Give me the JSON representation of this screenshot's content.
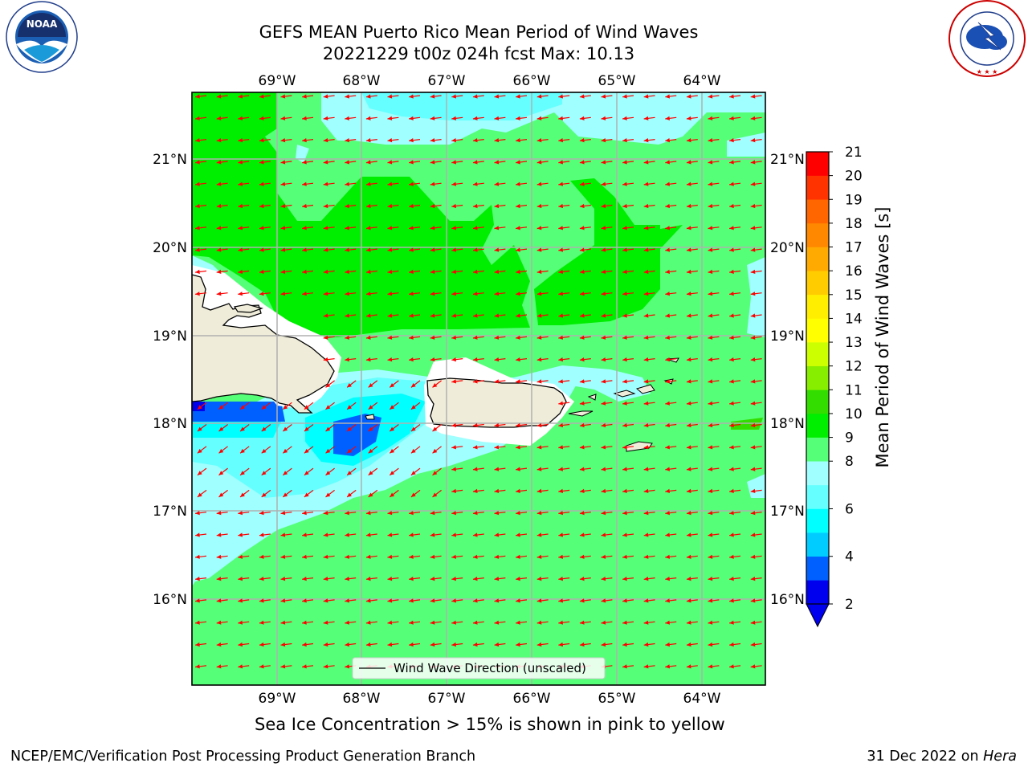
{
  "title": {
    "line1": "GEFS MEAN Puerto Rico Mean Period of Wind Waves",
    "line2": "20221229 t00z 024h fcst   Max: 10.13"
  },
  "axes": {
    "lon_ticks": [
      "69°W",
      "68°W",
      "67°W",
      "66°W",
      "65°W",
      "64°W"
    ],
    "lat_ticks": [
      "21°N",
      "20°N",
      "19°N",
      "18°N",
      "17°N",
      "16°N"
    ]
  },
  "legend": {
    "label": "Wind Wave Direction (unscaled)"
  },
  "colorbar": {
    "label": "Mean Period of Wind Waves [s]",
    "ticks": [
      "21",
      "20",
      "19",
      "18",
      "17",
      "16",
      "15",
      "14",
      "13",
      "12",
      "11",
      "10",
      "9",
      "8",
      "6",
      "4",
      "2"
    ],
    "colors": [
      "#0000ee",
      "#0060ff",
      "#00ccff",
      "#00ffff",
      "#66ffff",
      "#a0ffff",
      "#55ff77",
      "#00ee00",
      "#33dd00",
      "#88ee00",
      "#ccff00",
      "#ffff00",
      "#ffee00",
      "#ffcc00",
      "#ffaa00",
      "#ff8800",
      "#ff6600",
      "#ff3300",
      "#ff0000"
    ]
  },
  "caption": "Sea Ice Concentration > 15% is shown in pink to yellow",
  "footer": {
    "left": "NCEP/EMC/Verification Post Processing Product Generation Branch",
    "date": "31 Dec 2022 on",
    "machine": "Hera"
  },
  "logos": {
    "noaa": "NOAA",
    "noaa_ring": "NATIONAL OCEANIC AND ATMOSPHERIC ADMINISTRATION · U.S. DEPARTMENT OF COMMERCE",
    "nws_ring": "NATIONAL WEATHER SERVICE"
  },
  "colors": {
    "sea_main": "#55ff77",
    "sea_dark_green": "#00ee00",
    "sea_light_cyan": "#a0ffff",
    "sea_cyan": "#00ffff",
    "sea_blue": "#0060ff",
    "sea_deep_blue": "#0000ee",
    "land": "#efedd9",
    "arrows": "#ff0000",
    "grid": "#b0b0b0"
  }
}
